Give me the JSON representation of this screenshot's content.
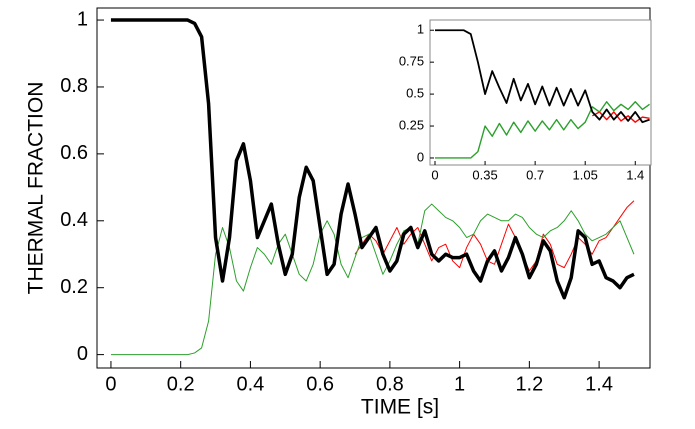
{
  "chart_data": [
    {
      "type": "line",
      "xlabel": "TIME [s]",
      "ylabel": "THERMAL FRACTION",
      "xlim": [
        -0.04,
        1.546
      ],
      "ylim": [
        -0.04,
        1.036
      ],
      "xticks": [
        0,
        0.2,
        0.4,
        0.6,
        0.8,
        1,
        1.2,
        1.4
      ],
      "yticks": [
        0,
        0.2,
        0.4,
        0.6,
        0.8,
        1
      ],
      "x": [
        0,
        0.02,
        0.04,
        0.06,
        0.08,
        0.1,
        0.12,
        0.14,
        0.16,
        0.18,
        0.2,
        0.22,
        0.24,
        0.26,
        0.28,
        0.3,
        0.32,
        0.34,
        0.36,
        0.38,
        0.4,
        0.42,
        0.44,
        0.46,
        0.48,
        0.5,
        0.52,
        0.54,
        0.56,
        0.58,
        0.6,
        0.62,
        0.64,
        0.66,
        0.68,
        0.7,
        0.72,
        0.74,
        0.76,
        0.78,
        0.8,
        0.82,
        0.84,
        0.86,
        0.88,
        0.9,
        0.92,
        0.94,
        0.96,
        0.98,
        1,
        1.02,
        1.04,
        1.06,
        1.08,
        1.1,
        1.12,
        1.14,
        1.16,
        1.18,
        1.2,
        1.22,
        1.24,
        1.26,
        1.28,
        1.3,
        1.32,
        1.34,
        1.36,
        1.38,
        1.4,
        1.42,
        1.44,
        1.46,
        1.48,
        1.5
      ],
      "series": [
        {
          "color": "#ff0000",
          "values": [
            null,
            null,
            null,
            null,
            null,
            null,
            null,
            null,
            null,
            null,
            null,
            null,
            null,
            null,
            null,
            null,
            null,
            null,
            null,
            null,
            null,
            null,
            null,
            null,
            null,
            null,
            null,
            null,
            null,
            null,
            null,
            null,
            null,
            null,
            null,
            0.3,
            0.33,
            0.36,
            0.34,
            0.3,
            0.34,
            0.38,
            0.33,
            0.36,
            0.38,
            0.33,
            0.28,
            0.32,
            0.33,
            0.28,
            0.26,
            0.32,
            0.36,
            0.33,
            0.28,
            0.27,
            0.33,
            0.39,
            0.35,
            0.3,
            0.25,
            0.28,
            0.36,
            0.33,
            0.27,
            0.26,
            0.3,
            0.35,
            0.33,
            0.3,
            0.34,
            0.35,
            0.38,
            0.41,
            0.44,
            0.46
          ]
        },
        {
          "color": "#2ca02c",
          "values": [
            0,
            0,
            0,
            0,
            0,
            0,
            0,
            0,
            0,
            0,
            0,
            0,
            0.005,
            0.02,
            0.1,
            0.3,
            0.38,
            0.32,
            0.22,
            0.19,
            0.26,
            0.32,
            0.3,
            0.27,
            0.33,
            0.36,
            0.3,
            0.24,
            0.22,
            0.27,
            0.36,
            0.4,
            0.36,
            0.27,
            0.23,
            0.29,
            0.35,
            0.36,
            0.3,
            0.24,
            0.28,
            0.33,
            0.37,
            0.38,
            0.33,
            0.43,
            0.45,
            0.43,
            0.41,
            0.4,
            0.38,
            0.35,
            0.36,
            0.4,
            0.42,
            0.41,
            0.4,
            0.4,
            0.42,
            0.41,
            0.38,
            0.36,
            0.35,
            0.37,
            0.38,
            0.4,
            0.43,
            0.4,
            0.36,
            0.34,
            0.35,
            0.36,
            0.38,
            0.4,
            0.35,
            0.3
          ]
        },
        {
          "color": "#000000",
          "values": [
            1,
            1,
            1,
            1,
            1,
            1,
            1,
            1,
            1,
            1,
            1,
            1,
            0.99,
            0.95,
            0.75,
            0.35,
            0.22,
            0.35,
            0.58,
            0.63,
            0.52,
            0.35,
            0.4,
            0.45,
            0.33,
            0.24,
            0.3,
            0.47,
            0.56,
            0.52,
            0.38,
            0.24,
            0.27,
            0.42,
            0.51,
            0.42,
            0.32,
            0.35,
            0.38,
            0.3,
            0.25,
            0.28,
            0.36,
            0.38,
            0.32,
            0.37,
            0.3,
            0.28,
            0.3,
            0.29,
            0.29,
            0.3,
            0.25,
            0.22,
            0.28,
            0.31,
            0.25,
            0.29,
            0.35,
            0.3,
            0.23,
            0.27,
            0.34,
            0.31,
            0.22,
            0.17,
            0.23,
            0.37,
            0.35,
            0.27,
            0.28,
            0.23,
            0.22,
            0.2,
            0.23,
            0.24
          ]
        }
      ]
    },
    {
      "type": "line",
      "xlim": [
        -0.035,
        1.51
      ],
      "ylim": [
        -0.055,
        1.08
      ],
      "xticks": [
        0,
        0.35,
        0.7,
        1.05,
        1.4
      ],
      "yticks": [
        0,
        0.25,
        0.5,
        0.75,
        1
      ],
      "x": [
        0,
        0.05,
        0.1,
        0.15,
        0.2,
        0.25,
        0.3,
        0.35,
        0.4,
        0.45,
        0.5,
        0.55,
        0.6,
        0.65,
        0.7,
        0.75,
        0.8,
        0.85,
        0.9,
        0.95,
        1,
        1.05,
        1.1,
        1.15,
        1.2,
        1.25,
        1.3,
        1.35,
        1.4,
        1.45,
        1.5
      ],
      "series": [
        {
          "color": "#ff0000",
          "values": [
            null,
            null,
            null,
            null,
            null,
            null,
            null,
            null,
            null,
            null,
            null,
            null,
            null,
            null,
            null,
            null,
            null,
            null,
            null,
            null,
            null,
            null,
            0.33,
            0.36,
            0.3,
            0.36,
            0.29,
            0.33,
            0.28,
            0.32,
            0.31
          ]
        },
        {
          "color": "#2ca02c",
          "values": [
            0,
            0,
            0,
            0,
            0,
            0,
            0.05,
            0.25,
            0.17,
            0.27,
            0.18,
            0.28,
            0.2,
            0.29,
            0.21,
            0.29,
            0.22,
            0.3,
            0.22,
            0.3,
            0.23,
            0.28,
            0.4,
            0.36,
            0.44,
            0.37,
            0.42,
            0.38,
            0.44,
            0.38,
            0.42
          ]
        },
        {
          "color": "#000000",
          "values": [
            1,
            1,
            1,
            1,
            1,
            0.97,
            0.75,
            0.5,
            0.68,
            0.55,
            0.43,
            0.62,
            0.45,
            0.58,
            0.42,
            0.56,
            0.41,
            0.55,
            0.41,
            0.54,
            0.41,
            0.53,
            0.36,
            0.3,
            0.38,
            0.3,
            0.36,
            0.29,
            0.36,
            0.28,
            0.3
          ]
        }
      ]
    }
  ]
}
